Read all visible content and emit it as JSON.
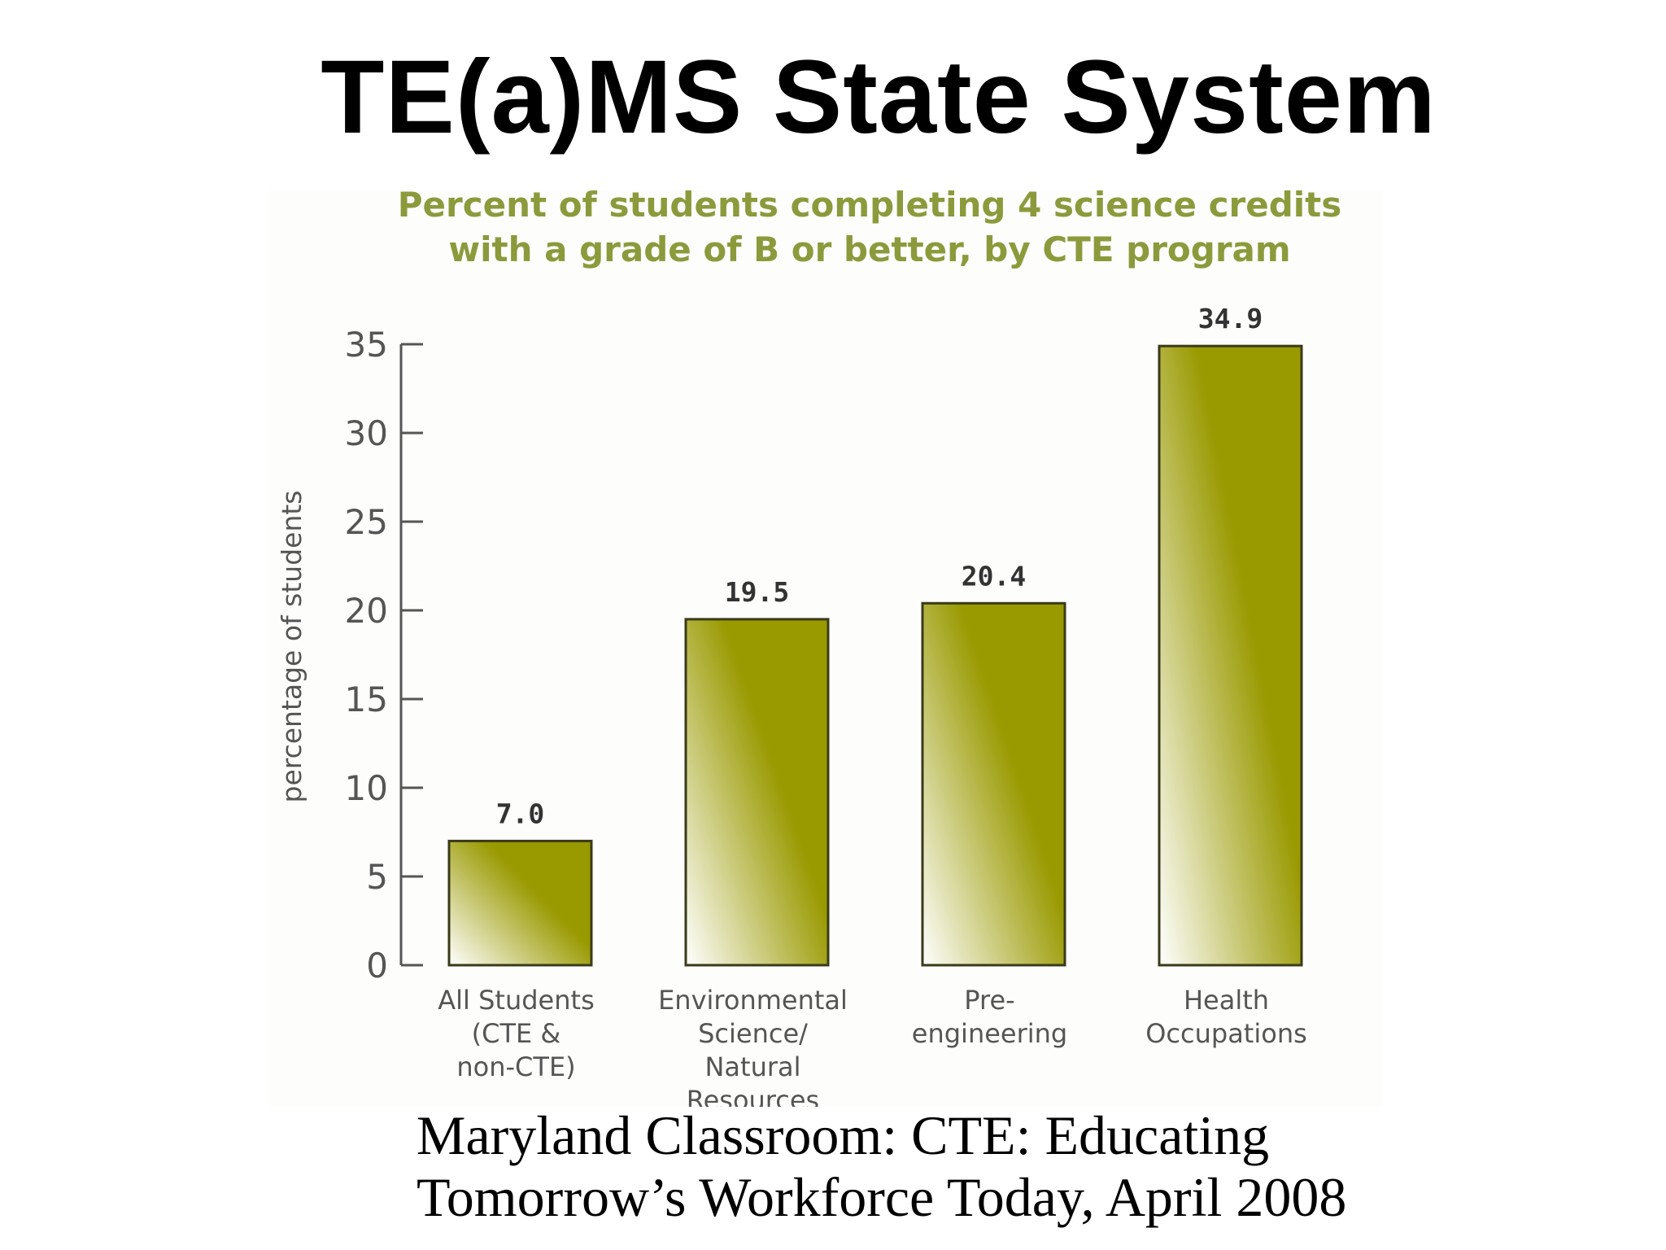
{
  "slide": {
    "title": "TE(a)MS State System",
    "caption_lines": [
      "Maryland Classroom: CTE: Educating",
      "Tomorrow’s Workforce Today, April 2008"
    ]
  },
  "colors": {
    "bar_top": "#999900",
    "bar_bottom": "#ffffff",
    "bar_border": "#3a3a1a",
    "chart_title": "#8c9a3c",
    "axis": "#555555",
    "text": "#555555",
    "value_label": "#333333"
  },
  "chart_data": {
    "type": "bar",
    "title_lines": [
      "Percent of students completing 4 science credits",
      "with a grade of B or better, by CTE program"
    ],
    "ylabel": "percentage of students",
    "xlabel": "",
    "ylim": [
      0,
      35
    ],
    "yticks": [
      0,
      5,
      10,
      15,
      20,
      25,
      30,
      35
    ],
    "grid": false,
    "legend": "none",
    "categories": [
      [
        "All Students",
        "(CTE &",
        "non-CTE)"
      ],
      [
        "Environmental",
        "Science/",
        "Natural",
        "Resources"
      ],
      [
        "Pre-",
        "engineering"
      ],
      [
        "Health",
        "Occupations"
      ]
    ],
    "values": [
      7.0,
      19.5,
      20.4,
      34.9
    ],
    "value_labels": [
      "7.0",
      "19.5",
      "20.4",
      "34.9"
    ]
  }
}
